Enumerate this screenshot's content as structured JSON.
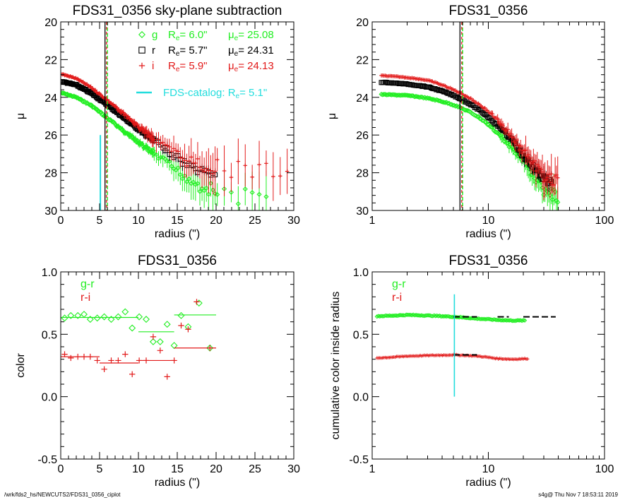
{
  "colors": {
    "g": "#22ee22",
    "r": "#000000",
    "i": "#e21a1a",
    "catalog": "#22dddd"
  },
  "footer": {
    "left": "/wrk/fds2_hs/NEWCUTS2/FDS31_0356_ciplot",
    "right": "s4g@  Thu Nov  7 18:53:11 2019"
  },
  "chart_data": [
    {
      "type": "scatter",
      "title": "FDS31_0356 sky-plane subtraction",
      "xlabel": "radius (\")",
      "ylabel": "μ",
      "xlim": [
        0,
        30
      ],
      "ylim": [
        30,
        20
      ],
      "xscale": "linear",
      "x_ticks": [
        "0",
        "5",
        "10",
        "15",
        "20",
        "25",
        "30"
      ],
      "y_ticks": [
        "20",
        "22",
        "24",
        "26",
        "28",
        "30"
      ],
      "grid": false,
      "legend_position": "top-right",
      "legend": [
        {
          "marker": "g",
          "label": "g",
          "re_label": "R",
          "re_sub": "e",
          "re_value": "=  6.0\"",
          "mu_label": "μ",
          "mu_sub": "e",
          "mu_value": "= 25.08"
        },
        {
          "marker": "r",
          "label": "r",
          "re_label": "R",
          "re_sub": "e",
          "re_value": "=  5.7\"",
          "mu_label": "μ",
          "mu_sub": "e",
          "mu_value": "= 24.31"
        },
        {
          "marker": "i",
          "label": "i",
          "re_label": "R",
          "re_sub": "e",
          "re_value": "=  5.9\"",
          "mu_label": "μ",
          "mu_sub": "e",
          "mu_value": "= 24.13"
        }
      ],
      "catalog_label": "FDS-catalog: R",
      "catalog_sub": "e",
      "catalog_value": "=  5.1\"",
      "catalog_re": 5.1,
      "re_lines": {
        "g": 6.0,
        "r": 5.7,
        "i": 5.9
      },
      "series": [
        {
          "name": "g",
          "profile": [
            [
              0,
              23.75
            ],
            [
              2,
              24.0
            ],
            [
              4,
              24.45
            ],
            [
              6,
              25.1
            ],
            [
              8,
              25.75
            ],
            [
              10,
              26.4
            ],
            [
              12,
              27.0
            ],
            [
              14,
              27.6
            ],
            [
              16,
              28.2
            ],
            [
              18,
              28.7
            ],
            [
              20,
              29.0
            ],
            [
              22,
              29.2
            ],
            [
              24,
              29.3
            ],
            [
              27,
              29.5
            ]
          ],
          "spread": [
            [
              0,
              0.05
            ],
            [
              10,
              0.15
            ],
            [
              15,
              0.5
            ],
            [
              20,
              0.8
            ],
            [
              27,
              1.0
            ]
          ]
        },
        {
          "name": "r",
          "profile": [
            [
              0,
              23.15
            ],
            [
              2,
              23.35
            ],
            [
              4,
              23.8
            ],
            [
              6,
              24.4
            ],
            [
              8,
              25.05
            ],
            [
              10,
              25.7
            ],
            [
              12,
              26.3
            ],
            [
              14,
              26.9
            ],
            [
              16,
              27.5
            ],
            [
              18,
              27.9
            ],
            [
              20,
              28.05
            ]
          ],
          "spread": [
            [
              0,
              0.05
            ],
            [
              10,
              0.1
            ],
            [
              15,
              0.3
            ],
            [
              20,
              0.4
            ]
          ]
        },
        {
          "name": "i",
          "profile": [
            [
              0,
              22.75
            ],
            [
              2,
              23.0
            ],
            [
              4,
              23.5
            ],
            [
              6,
              24.15
            ],
            [
              8,
              24.85
            ],
            [
              10,
              25.55
            ],
            [
              12,
              26.2
            ],
            [
              14,
              26.8
            ],
            [
              16,
              27.3
            ],
            [
              18,
              27.6
            ],
            [
              20,
              27.75
            ],
            [
              22,
              27.8
            ],
            [
              26,
              27.85
            ],
            [
              30,
              27.9
            ]
          ],
          "spread": [
            [
              0,
              0.05
            ],
            [
              10,
              0.15
            ],
            [
              15,
              0.6
            ],
            [
              20,
              0.9
            ],
            [
              30,
              1.0
            ]
          ]
        }
      ]
    },
    {
      "type": "scatter",
      "title": "FDS31_0356",
      "xlabel": "radius (\")",
      "ylabel": "μ",
      "xlim": [
        1,
        100
      ],
      "ylim": [
        30,
        20
      ],
      "xscale": "log",
      "x_ticks": [
        "1",
        "10",
        "100"
      ],
      "y_ticks": [
        "20",
        "22",
        "24",
        "26",
        "28",
        "30"
      ],
      "grid": false,
      "re_lines": {
        "g": 6.0,
        "r": 5.7,
        "i": 5.9
      },
      "series": [
        {
          "name": "g",
          "profile": [
            [
              1.2,
              23.85
            ],
            [
              2,
              23.9
            ],
            [
              3,
              24.05
            ],
            [
              5,
              24.4
            ],
            [
              8,
              25.0
            ],
            [
              12,
              25.9
            ],
            [
              16,
              26.7
            ],
            [
              20,
              27.4
            ],
            [
              25,
              28.2
            ],
            [
              30,
              28.9
            ],
            [
              40,
              29.4
            ]
          ],
          "spread": [
            [
              1,
              0.03
            ],
            [
              10,
              0.1
            ],
            [
              20,
              0.4
            ],
            [
              40,
              0.8
            ]
          ]
        },
        {
          "name": "r",
          "profile": [
            [
              1.2,
              23.2
            ],
            [
              2,
              23.3
            ],
            [
              3,
              23.45
            ],
            [
              5,
              23.9
            ],
            [
              8,
              24.6
            ],
            [
              12,
              25.5
            ],
            [
              16,
              26.3
            ],
            [
              20,
              27.1
            ],
            [
              25,
              27.8
            ],
            [
              30,
              28.3
            ],
            [
              35,
              28.6
            ]
          ],
          "spread": [
            [
              1,
              0.03
            ],
            [
              10,
              0.08
            ],
            [
              20,
              0.3
            ],
            [
              35,
              0.4
            ]
          ]
        },
        {
          "name": "i",
          "profile": [
            [
              1.2,
              22.85
            ],
            [
              2,
              22.95
            ],
            [
              3,
              23.1
            ],
            [
              5,
              23.6
            ],
            [
              8,
              24.3
            ],
            [
              12,
              25.2
            ],
            [
              16,
              26.1
            ],
            [
              20,
              26.9
            ],
            [
              25,
              27.6
            ],
            [
              30,
              28.2
            ],
            [
              40,
              28.5
            ]
          ],
          "spread": [
            [
              1,
              0.03
            ],
            [
              10,
              0.1
            ],
            [
              20,
              0.5
            ],
            [
              40,
              0.8
            ]
          ]
        }
      ]
    },
    {
      "type": "scatter",
      "title": "FDS31_0356",
      "xlabel": "radius (\")",
      "ylabel": "color",
      "xlim": [
        0,
        30
      ],
      "ylim": [
        -0.5,
        1.0
      ],
      "xscale": "linear",
      "x_ticks": [
        "0",
        "5",
        "10",
        "15",
        "20",
        "25",
        "30"
      ],
      "y_ticks": [
        "1.0",
        "0.5",
        "0.0",
        "-0.5"
      ],
      "grid": false,
      "legend_position": "top-left",
      "legend": [
        {
          "name": "g-r",
          "label": "g-r"
        },
        {
          "name": "r-i",
          "label": "r-i"
        }
      ],
      "series": [
        {
          "name": "g-r",
          "marker": "diamond",
          "points": [
            [
              0.5,
              0.63
            ],
            [
              1.3,
              0.65
            ],
            [
              2.2,
              0.65
            ],
            [
              3,
              0.66
            ],
            [
              3.8,
              0.62
            ],
            [
              4.7,
              0.63
            ],
            [
              5.6,
              0.64
            ],
            [
              6.5,
              0.62
            ],
            [
              7.4,
              0.64
            ],
            [
              8.3,
              0.68
            ],
            [
              9.2,
              0.55
            ],
            [
              10.1,
              0.64
            ],
            [
              11,
              0.62
            ],
            [
              11.9,
              0.44
            ],
            [
              12.8,
              0.44
            ],
            [
              13.7,
              0.58
            ],
            [
              14.6,
              0.41
            ],
            [
              15.5,
              0.65
            ],
            [
              16.4,
              0.56
            ],
            [
              17.8,
              0.75
            ],
            [
              19.2,
              0.39
            ]
          ],
          "means": [
            [
              0,
              10,
              0.635
            ],
            [
              10,
              14.6,
              0.52
            ],
            [
              14.6,
              20,
              0.655
            ]
          ]
        },
        {
          "name": "r-i",
          "marker": "plus",
          "points": [
            [
              0.5,
              0.34
            ],
            [
              1.3,
              0.31
            ],
            [
              2.2,
              0.32
            ],
            [
              3,
              0.32
            ],
            [
              3.8,
              0.32
            ],
            [
              4.7,
              0.29
            ],
            [
              5.6,
              0.22
            ],
            [
              6.5,
              0.29
            ],
            [
              7.4,
              0.29
            ],
            [
              8.3,
              0.34
            ],
            [
              9.2,
              0.18
            ],
            [
              10.1,
              0.29
            ],
            [
              11,
              0.29
            ],
            [
              11.9,
              0.48
            ],
            [
              12.8,
              0.37
            ],
            [
              13.7,
              0.16
            ],
            [
              14.6,
              0.29
            ],
            [
              15.5,
              0.57
            ],
            [
              16.4,
              0.54
            ],
            [
              17.5,
              0.76
            ],
            [
              19.2,
              0.39
            ]
          ],
          "means": [
            [
              0,
              5,
              0.32
            ],
            [
              5,
              10,
              0.27
            ],
            [
              10,
              14.6,
              0.29
            ],
            [
              14.6,
              20,
              0.39
            ]
          ]
        }
      ]
    },
    {
      "type": "scatter",
      "title": "FDS31_0356",
      "xlabel": "radius (\")",
      "ylabel": "cumulative color inside radius",
      "xlim": [
        1,
        100
      ],
      "ylim": [
        -0.5,
        1.0
      ],
      "xscale": "log",
      "x_ticks": [
        "1",
        "10",
        "100"
      ],
      "y_ticks": [
        "1.0",
        "0.5",
        "0.0",
        "-0.5"
      ],
      "grid": false,
      "legend_position": "top-left",
      "legend": [
        {
          "name": "g-r",
          "label": "g-r"
        },
        {
          "name": "r-i",
          "label": "r-i"
        }
      ],
      "catalog_re": 5.1,
      "catalog_ylim": [
        0.0,
        0.82
      ],
      "series": [
        {
          "name": "g-r",
          "marker": "diamond",
          "profile": [
            [
              1.1,
              0.645
            ],
            [
              2,
              0.655
            ],
            [
              3,
              0.65
            ],
            [
              5,
              0.64
            ],
            [
              8,
              0.625
            ],
            [
              12,
              0.615
            ],
            [
              16,
              0.61
            ],
            [
              21,
              0.61
            ]
          ],
          "range": [
            1.1,
            21
          ],
          "dashes": [
            [
              5,
              8,
              0.64
            ],
            [
              12,
              15,
              0.64
            ],
            [
              20,
              38,
              0.64
            ]
          ]
        },
        {
          "name": "r-i",
          "marker": "plus",
          "profile": [
            [
              1.1,
              0.31
            ],
            [
              2,
              0.325
            ],
            [
              3,
              0.33
            ],
            [
              5,
              0.335
            ],
            [
              8,
              0.325
            ],
            [
              12,
              0.305
            ],
            [
              16,
              0.3
            ],
            [
              22,
              0.305
            ]
          ],
          "range": [
            1.1,
            22
          ],
          "dashes": [
            [
              5,
              8,
              0.335
            ]
          ]
        }
      ]
    }
  ]
}
